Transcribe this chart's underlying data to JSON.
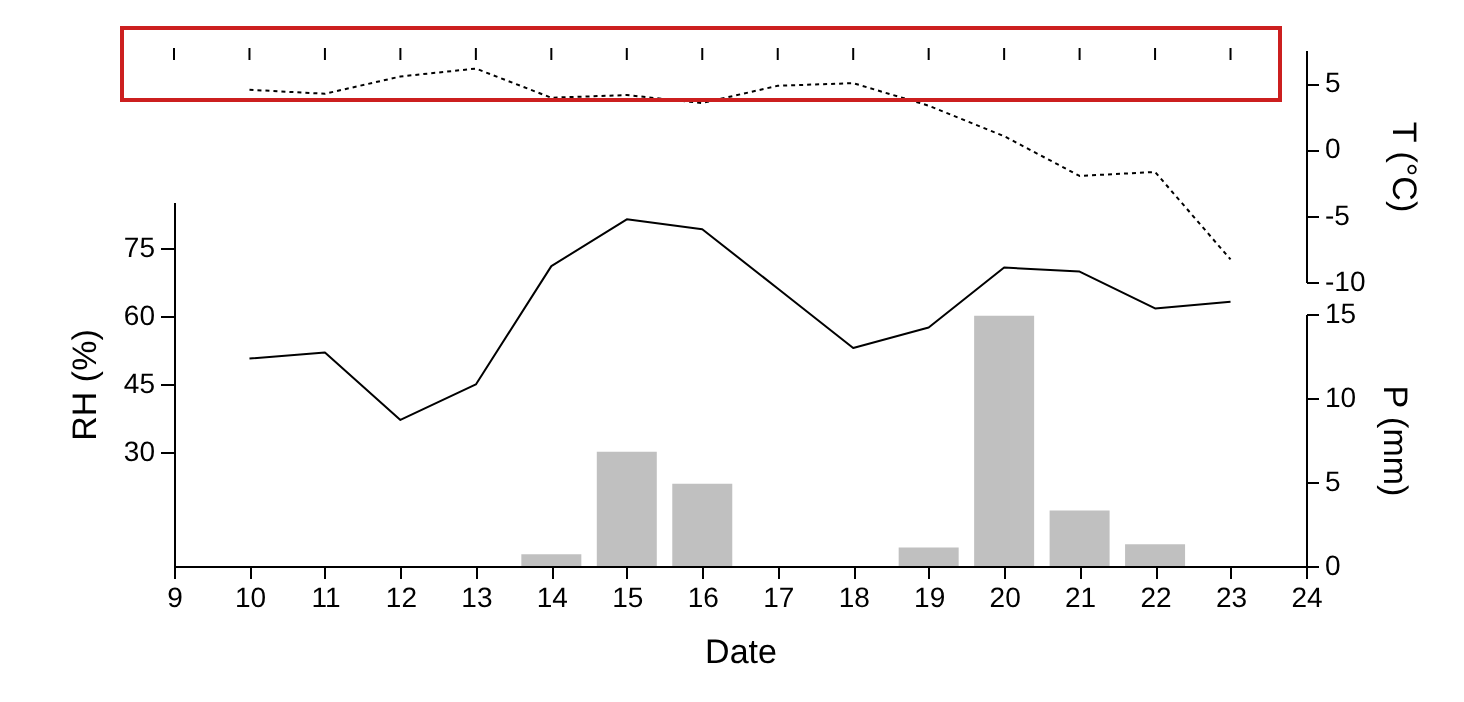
{
  "chart_data": {
    "type": "line",
    "xlabel": "Date",
    "ylabel": "RH (%)",
    "y2label": "P (mm)",
    "y3label": "T (°C)",
    "x": [
      10,
      11,
      12,
      13,
      14,
      15,
      16,
      17,
      18,
      19,
      20,
      21,
      22,
      23
    ],
    "xlim": [
      9,
      24
    ],
    "xticks": [
      9,
      10,
      11,
      12,
      13,
      14,
      15,
      16,
      17,
      18,
      19,
      20,
      21,
      22,
      23,
      24
    ],
    "ylim": [
      5,
      85
    ],
    "yticks": [
      30,
      45,
      60,
      75
    ],
    "y2lim": [
      0,
      15
    ],
    "y2ticks": [
      0,
      5,
      10,
      15
    ],
    "y3lim": [
      -10,
      7.5
    ],
    "y3ticks": [
      -10,
      -5,
      0,
      5
    ],
    "marker": "none",
    "grid": false,
    "series": [
      {
        "axis": "y",
        "color": "#000000",
        "line_style": "solid",
        "values": [
          50.6,
          51.9,
          37.1,
          44.9,
          70.9,
          81.2,
          79,
          66,
          52.9,
          57.4,
          70.6,
          69.7,
          61.6,
          63.1
        ]
      },
      {
        "axis": "y3",
        "color": "#000000",
        "line_style": "dotted",
        "values": [
          4.5,
          4.2,
          5.5,
          6.1,
          3.9,
          4.1,
          3.5,
          4.8,
          5.0,
          3.3,
          1.0,
          -2.0,
          -1.7,
          -8.3
        ]
      },
      {
        "type": "bar",
        "axis": "y2",
        "color": "#c0c0c0",
        "x": [
          14,
          15,
          16,
          19,
          20,
          21,
          22
        ],
        "values": [
          0.7,
          6.8,
          4.9,
          1.1,
          14.9,
          3.3,
          1.3
        ]
      }
    ]
  }
}
